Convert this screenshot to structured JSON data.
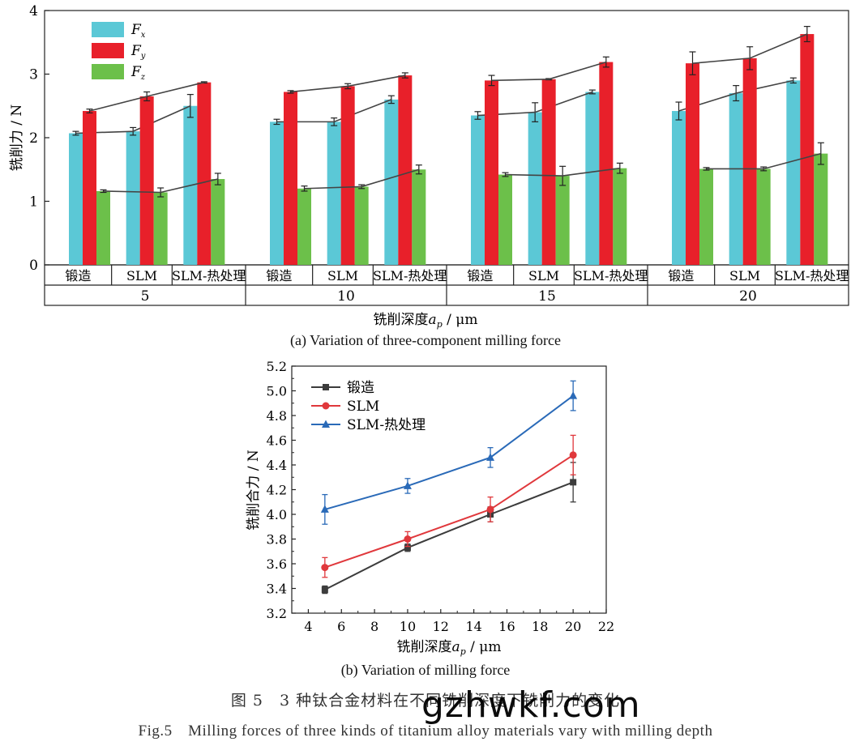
{
  "chart_data": [
    {
      "type": "bar",
      "groups": [
        "5",
        "10",
        "15",
        "20"
      ],
      "categories": [
        "锻造",
        "SLM",
        "SLM-热处理"
      ],
      "xlabel_cn": "铣削深度",
      "xlabel_sym": "a",
      "xlabel_sub": "p",
      "xlabel_unit": " / μm",
      "ylabel": "铣削力 / N",
      "ylim": [
        0,
        4
      ],
      "yticks": [
        "0",
        "1",
        "2",
        "3",
        "4"
      ],
      "legend_position": "top-left",
      "series": [
        {
          "name": "F",
          "sub": "x",
          "color": "#5bc8d6",
          "values": [
            [
              2.07,
              2.1,
              2.5
            ],
            [
              2.25,
              2.25,
              2.6
            ],
            [
              2.35,
              2.4,
              2.72
            ],
            [
              2.42,
              2.7,
              2.9
            ]
          ],
          "errors": [
            [
              0.03,
              0.06,
              0.18
            ],
            [
              0.04,
              0.06,
              0.06
            ],
            [
              0.06,
              0.15,
              0.03
            ],
            [
              0.14,
              0.12,
              0.04
            ]
          ]
        },
        {
          "name": "F",
          "sub": "y",
          "color": "#e8202a",
          "values": [
            [
              2.42,
              2.65,
              2.87
            ],
            [
              2.72,
              2.81,
              2.98
            ],
            [
              2.9,
              2.92,
              3.19
            ],
            [
              3.17,
              3.25,
              3.63
            ]
          ],
          "errors": [
            [
              0.03,
              0.07,
              0.01
            ],
            [
              0.02,
              0.04,
              0.04
            ],
            [
              0.08,
              0.01,
              0.08
            ],
            [
              0.18,
              0.18,
              0.12
            ]
          ]
        },
        {
          "name": "F",
          "sub": "z",
          "color": "#6cc04a",
          "values": [
            [
              1.16,
              1.14,
              1.35
            ],
            [
              1.2,
              1.23,
              1.5
            ],
            [
              1.42,
              1.4,
              1.52
            ],
            [
              1.51,
              1.51,
              1.75
            ]
          ],
          "errors": [
            [
              0.02,
              0.07,
              0.09
            ],
            [
              0.04,
              0.03,
              0.07
            ],
            [
              0.03,
              0.15,
              0.08
            ],
            [
              0.02,
              0.03,
              0.17
            ]
          ]
        }
      ],
      "caption": "(a) Variation of three-component milling force"
    },
    {
      "type": "line",
      "x": [
        5,
        10,
        15,
        20
      ],
      "xlim": [
        3,
        22
      ],
      "xticks": [
        "4",
        "6",
        "8",
        "10",
        "12",
        "14",
        "16",
        "18",
        "20",
        "22"
      ],
      "ylim": [
        3.2,
        5.2
      ],
      "yticks": [
        "3.2",
        "3.4",
        "3.6",
        "3.8",
        "4.0",
        "4.2",
        "4.4",
        "4.6",
        "4.8",
        "5.0",
        "5.2"
      ],
      "xlabel_cn": "铣削深度",
      "xlabel_sym": "a",
      "xlabel_sub": "p",
      "xlabel_unit": " / μm",
      "ylabel": "铣削合力 / N",
      "legend_position": "top-left",
      "series": [
        {
          "name": "锻造",
          "color": "#3c3c3c",
          "marker": "square",
          "values": [
            3.39,
            3.73,
            4.0,
            4.26
          ],
          "errors": [
            0.03,
            0.03,
            0.06,
            0.16
          ]
        },
        {
          "name": "SLM",
          "color": "#e0383c",
          "marker": "circle",
          "values": [
            3.57,
            3.8,
            4.04,
            4.48
          ],
          "errors": [
            0.08,
            0.06,
            0.1,
            0.16
          ]
        },
        {
          "name": "SLM-热处理",
          "color": "#2a6ab8",
          "marker": "triangle",
          "values": [
            4.04,
            4.23,
            4.46,
            4.96
          ],
          "errors": [
            0.12,
            0.06,
            0.08,
            0.12
          ]
        }
      ],
      "caption": "(b) Variation of milling force"
    }
  ],
  "figure": {
    "caption_cn": "图 5　3 种钛合金材料在不同铣削深度下铣削力的变化",
    "caption_en": "Fig.5　Milling forces of three kinds of titanium alloy materials vary with milling depth",
    "watermark": "gzhwkf.com"
  }
}
